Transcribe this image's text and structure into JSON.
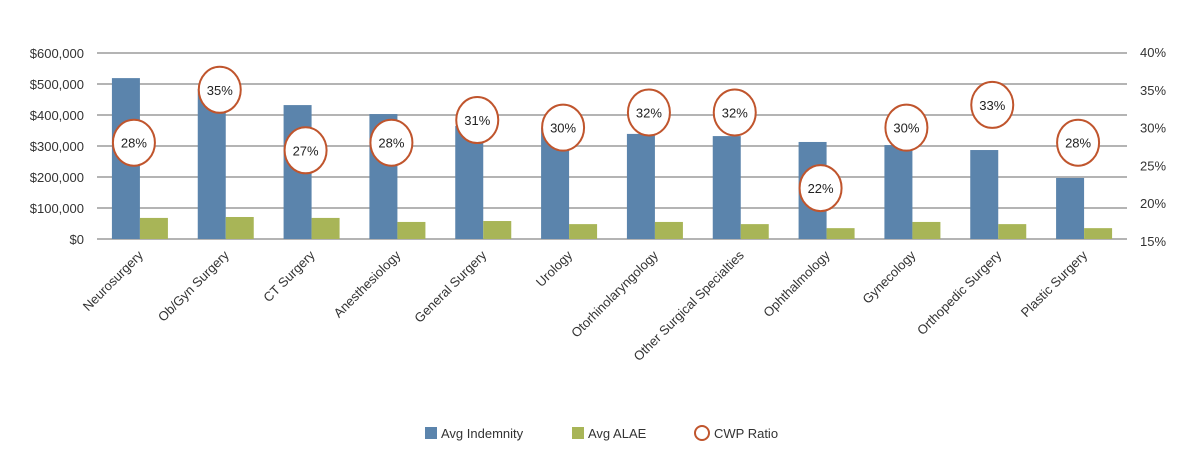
{
  "chart_data": {
    "type": "bar",
    "title": "",
    "categories": [
      "Neurosurgery",
      "Ob/Gyn Surgery",
      "CT Surgery",
      "Anesthesiology",
      "General Surgery",
      "Urology",
      "Otorhinolaryngology",
      "Other Surgical Specialties",
      "Ophthalmology",
      "Gynecology",
      "Orthopedic Surgery",
      "Plastic Surgery"
    ],
    "series": [
      {
        "name": "Avg Indemnity",
        "type": "bar",
        "axis": "left",
        "color": "#5b84ac",
        "values": [
          519000,
          484000,
          432000,
          403000,
          365000,
          358000,
          339000,
          332000,
          313000,
          303000,
          287000,
          197000
        ]
      },
      {
        "name": "Avg ALAE",
        "type": "bar",
        "axis": "left",
        "color": "#a8b557",
        "values": [
          68000,
          71000,
          68000,
          55000,
          58000,
          48000,
          55000,
          48000,
          35000,
          55000,
          48000,
          35000
        ]
      },
      {
        "name": "CWP Ratio",
        "type": "marker",
        "axis": "right",
        "color": "#c0552d",
        "values": [
          28,
          35,
          27,
          28,
          31,
          30,
          32,
          32,
          22,
          30,
          33,
          28
        ],
        "labels": [
          "28%",
          "35%",
          "27%",
          "28%",
          "31%",
          "30%",
          "32%",
          "32%",
          "22%",
          "30%",
          "33%",
          "28%"
        ]
      }
    ],
    "left_axis": {
      "ylim": [
        0,
        600000
      ],
      "ticks": [
        0,
        100000,
        200000,
        300000,
        400000,
        500000,
        600000
      ],
      "tick_labels": [
        "$0",
        "$100,000",
        "$200,000",
        "$300,000",
        "$400,000",
        "$500,000",
        "$600,000"
      ]
    },
    "right_axis": {
      "ylim": [
        15,
        40
      ],
      "ticks": [
        15,
        20,
        25,
        30,
        35,
        40
      ],
      "tick_labels": [
        "15%",
        "20%",
        "25%",
        "30%",
        "35%",
        "40%"
      ]
    },
    "grid": true,
    "legend_position": "bottom"
  }
}
